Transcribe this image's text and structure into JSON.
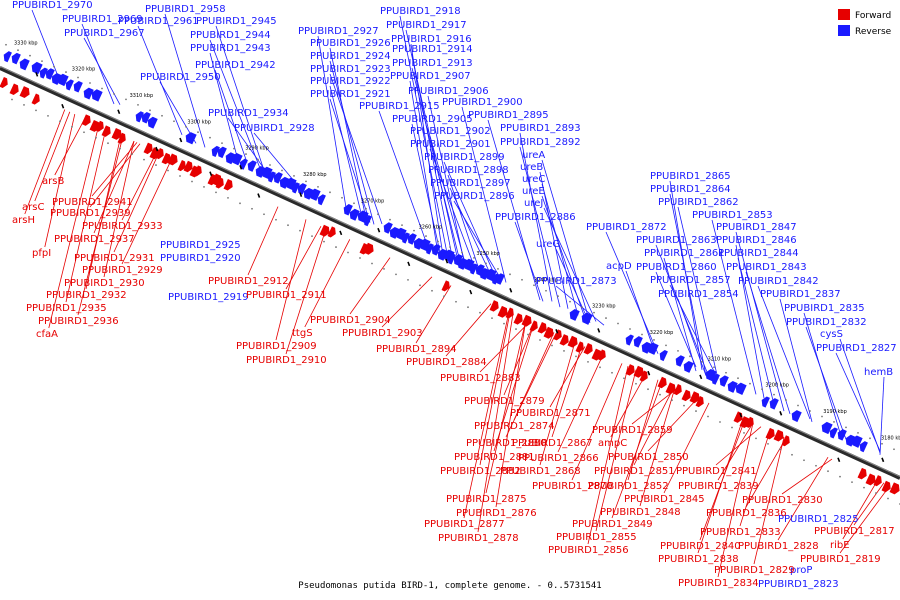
{
  "legend": [
    {
      "label": "Forward",
      "color": "#e60000"
    },
    {
      "label": "Reverse",
      "color": "#1a1aff"
    }
  ],
  "footer": "Pseudomonas putida BIRD-1, complete genome. - 0..5731541",
  "ticks": [
    "3330 kbp",
    "3320 kbp",
    "3310 kbp",
    "3300 kbp",
    "3290 kbp",
    "3280 kbp",
    "3270 kbp",
    "3260 kbp",
    "3250 kbp",
    "3240 kbp",
    "3230 kbp",
    "3220 kbp",
    "3210 kbp",
    "3200 kbp",
    "3190 kbp",
    "3180 kbp"
  ],
  "reverse_labels": [
    "PPUBIRD1_2970",
    "PPUBIRD1_2969",
    "PPUBIRD1_2967",
    "PPUBIRD1_2958",
    "PPUBIRD1_2961",
    "PPUBIRD1_2945",
    "PPUBIRD1_2944",
    "PPUBIRD1_2943",
    "PPUBIRD1_2942",
    "PPUBIRD1_2950",
    "PPUBIRD1_2934",
    "PPUBIRD1_2928",
    "PPUBIRD1_2918",
    "PPUBIRD1_2917",
    "PPUBIRD1_2927",
    "PPUBIRD1_2916",
    "PPUBIRD1_2926",
    "PPUBIRD1_2914",
    "PPUBIRD1_2924",
    "PPUBIRD1_2913",
    "PPUBIRD1_2923",
    "PPUBIRD1_2907",
    "PPUBIRD1_2922",
    "PPUBIRD1_2906",
    "PPUBIRD1_2921",
    "PPUBIRD1_2900",
    "PPUBIRD1_2915",
    "PPUBIRD1_2895",
    "PPUBIRD1_2905",
    "PPUBIRD1_2893",
    "PPUBIRD1_2902",
    "PPUBIRD1_2892",
    "PPUBIRD1_2901",
    "ureA",
    "PPUBIRD1_2899",
    "ureB",
    "PPUBIRD1_2898",
    "ureC",
    "PPUBIRD1_2897",
    "ureE",
    "PPUBIRD1_2896",
    "ureJ",
    "PPUBIRD1_2886",
    "ureG",
    "PPUBIRD1_2925",
    "PPUBIRD1_2920",
    "PPUBIRD1_2919",
    "PPUBIRD1_2873",
    "PPUBIRD1_2872",
    "acpD",
    "PPUBIRD1_2865",
    "PPUBIRD1_2864",
    "PPUBIRD1_2862",
    "PPUBIRD1_2853",
    "PPUBIRD1_2847",
    "PPUBIRD1_2863",
    "PPUBIRD1_2846",
    "PPUBIRD1_2861",
    "PPUBIRD1_2844",
    "PPUBIRD1_2860",
    "PPUBIRD1_2843",
    "PPUBIRD1_2857",
    "PPUBIRD1_2842",
    "PPUBIRD1_2854",
    "PPUBIRD1_2837",
    "PPUBIRD1_2835",
    "PPUBIRD1_2832",
    "cysS",
    "PPUBIRD1_2827",
    "hemB",
    "PPUBIRD1_2825",
    "proP",
    "PPUBIRD1_2823"
  ],
  "forward_labels": [
    "arsB",
    "arsC",
    "arsH",
    "PPUBIRD1_2941",
    "PPUBIRD1_2939",
    "pfpI",
    "PPUBIRD1_2933",
    "PPUBIRD1_2937",
    "PPUBIRD1_2931",
    "PPUBIRD1_2929",
    "PPUBIRD1_2930",
    "PPUBIRD1_2932",
    "PPUBIRD1_2935",
    "PPUBIRD1_2936",
    "cfaA",
    "PPUBIRD1_2912",
    "PPUBIRD1_2911",
    "PPUBIRD1_2904",
    "ttgS",
    "PPUBIRD1_2903",
    "PPUBIRD1_2909",
    "PPUBIRD1_2894",
    "PPUBIRD1_2910",
    "PPUBIRD1_2884",
    "PPUBIRD1_2883",
    "PPUBIRD1_2879",
    "PPUBIRD1_2871",
    "PPUBIRD1_2874",
    "PPUBIRD1_2859",
    "PPUBIRD1_2880",
    "PPUBIRD1_2867",
    "ampC",
    "PPUBIRD1_2881",
    "PPUBIRD1_2866",
    "PPUBIRD1_2850",
    "PPUBIRD1_2882",
    "PPUBIRD1_2868",
    "PPUBIRD1_2851",
    "PPUBIRD1_2841",
    "PPUBIRD1_2870",
    "PPUBIRD1_2852",
    "PPUBIRD1_2839",
    "PPUBIRD1_2875",
    "PPUBIRD1_2845",
    "PPUBIRD1_2830",
    "PPUBIRD1_2876",
    "PPUBIRD1_2848",
    "PPUBIRD1_2836",
    "PPUBIRD1_2877",
    "PPUBIRD1_2849",
    "PPUBIRD1_2833",
    "PPUBIRD1_2878",
    "PPUBIRD1_2855",
    "PPUBIRD1_2840",
    "PPUBIRD1_2828",
    "PPUBIRD1_2817",
    "ribE",
    "PPUBIRD1_2856",
    "PPUBIRD1_2838",
    "PPUBIRD1_2819",
    "PPUBIRD1_2829",
    "PPUBIRD1_2834"
  ]
}
